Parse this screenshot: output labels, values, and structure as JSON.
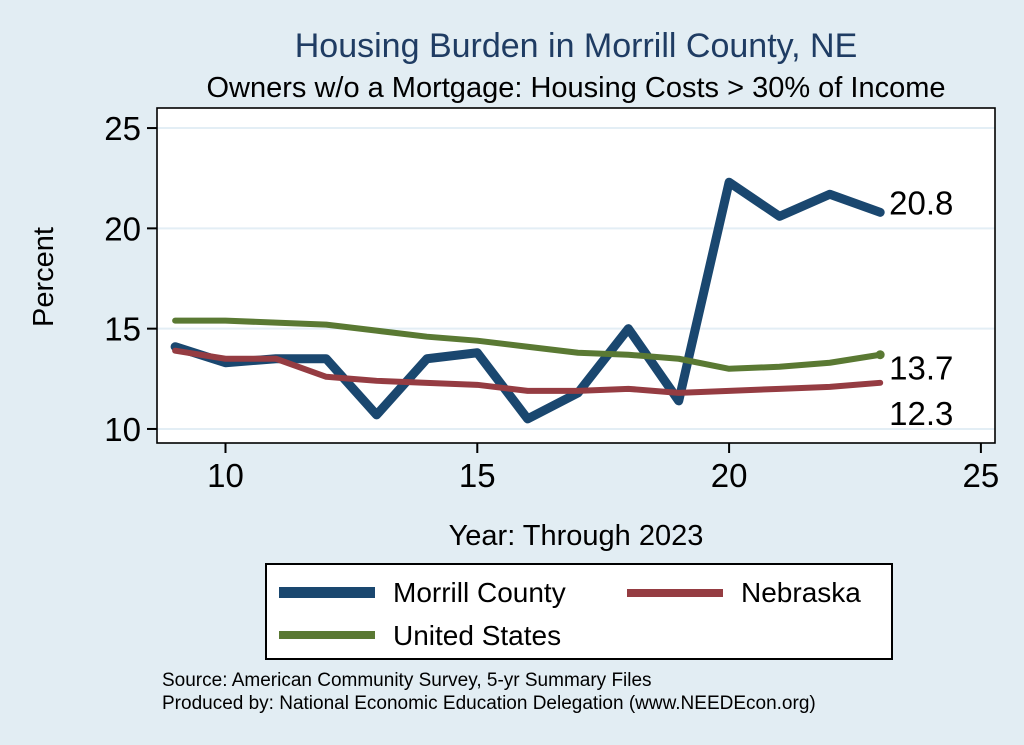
{
  "colors": {
    "background": "#e2edf3",
    "plot_background": "#ffffff",
    "grid_color": "#e3eef5",
    "axis_color": "#000000",
    "title_color": "#1f3c63"
  },
  "chart_data": {
    "type": "line",
    "title": "Housing Burden in Morrill County, NE",
    "subtitle": "Owners w/o a Mortgage: Housing Costs > 30% of Income",
    "xlabel": "Year: Through 2023",
    "ylabel": "Percent",
    "grid": "horizontal-only",
    "legend_position": "bottom",
    "x": [
      9,
      10,
      11,
      12,
      13,
      14,
      15,
      16,
      17,
      18,
      19,
      20,
      21,
      22,
      23
    ],
    "x_ticks": [
      "10",
      "15",
      "20",
      "25"
    ],
    "y_ticks": [
      "10",
      "15",
      "20",
      "25"
    ],
    "x_range": [
      8.64,
      25.28
    ],
    "y_range": [
      9.3,
      26.0
    ],
    "series": [
      {
        "name": "Morrill County",
        "color": "#1a476f",
        "line_width": 9,
        "values": [
          14.1,
          13.3,
          13.5,
          13.5,
          10.7,
          13.5,
          13.8,
          10.5,
          11.8,
          15.0,
          11.4,
          22.3,
          20.6,
          21.7,
          20.8
        ]
      },
      {
        "name": "Nebraska",
        "color": "#953c42",
        "line_width": 6,
        "values": [
          13.9,
          13.5,
          13.5,
          12.6,
          12.4,
          12.3,
          12.2,
          11.9,
          11.9,
          12.0,
          11.8,
          11.9,
          12.0,
          12.1,
          12.3
        ]
      },
      {
        "name": "United States",
        "color": "#5a7933",
        "line_width": 6,
        "end_marker": true,
        "values": [
          15.4,
          15.4,
          15.3,
          15.2,
          14.9,
          14.6,
          14.4,
          14.1,
          13.8,
          13.7,
          13.5,
          13.0,
          13.1,
          13.3,
          13.7
        ]
      }
    ],
    "end_labels": [
      {
        "series": 0,
        "text": "20.8",
        "dy": -9
      },
      {
        "series": 2,
        "text": "13.7",
        "dy": 14
      },
      {
        "series": 1,
        "text": "12.3",
        "dy": 31
      }
    ]
  },
  "source": {
    "line1": "Source: American Community Survey, 5-yr Summary Files",
    "line2": "Produced by: National Economic Education Delegation (www.NEEDEcon.org)"
  }
}
